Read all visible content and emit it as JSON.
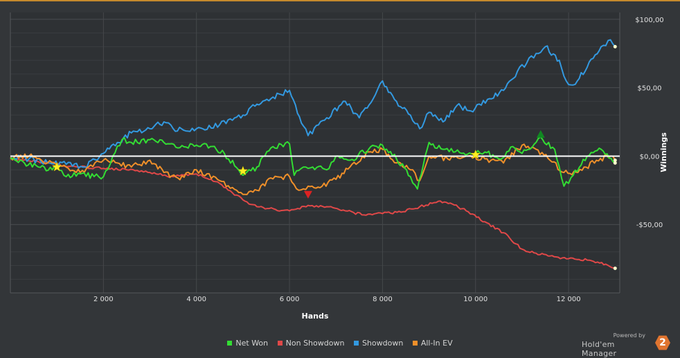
{
  "chart_data": {
    "type": "line",
    "xlabel": "Hands",
    "ylabel": "Winnings",
    "xlim": [
      0,
      13100
    ],
    "ylim": [
      -100,
      105
    ],
    "x_ticks": [
      2000,
      4000,
      6000,
      8000,
      10000,
      12000
    ],
    "x_tick_labels": [
      "2 000",
      "4 000",
      "6 000",
      "8 000",
      "10 000",
      "12 000"
    ],
    "y_ticks": [
      100,
      50,
      0,
      -50
    ],
    "y_tick_labels": [
      "$100,00",
      "$50,00",
      "$0,00",
      "-$50,00"
    ],
    "grid": true,
    "legend_position": "bottom",
    "series": [
      {
        "name": "Net Won",
        "color": "#33dd33",
        "x": [
          0,
          300,
          600,
          900,
          1000,
          1200,
          1500,
          1800,
          2000,
          2200,
          2400,
          2600,
          3000,
          3300,
          3600,
          4000,
          4300,
          4600,
          5000,
          5300,
          5600,
          6000,
          6100,
          6300,
          6500,
          6800,
          7000,
          7300,
          7700,
          8000,
          8300,
          8600,
          8750,
          9000,
          9300,
          9700,
          10000,
          10200,
          10500,
          10800,
          11000,
          11300,
          11400,
          11700,
          11900,
          12100,
          12400,
          12700,
          13000
        ],
        "y": [
          -2,
          -5,
          -8,
          -10,
          -8,
          -15,
          -13,
          -15,
          -15,
          0,
          12,
          10,
          12,
          10,
          6,
          8,
          7,
          2,
          -14,
          -8,
          6,
          9,
          -14,
          -8,
          -8,
          -10,
          0,
          -3,
          5,
          8,
          -2,
          -15,
          -24,
          10,
          5,
          2,
          2,
          3,
          -2,
          7,
          2,
          10,
          14,
          5,
          -22,
          -14,
          0,
          5,
          -5
        ]
      },
      {
        "name": "Non Showdown",
        "color": "#e04848",
        "x": [
          0,
          600,
          1000,
          1500,
          2000,
          2500,
          3000,
          3500,
          4000,
          4500,
          5000,
          5300,
          5700,
          6000,
          6400,
          6800,
          7200,
          7600,
          8000,
          8400,
          8800,
          9200,
          9500,
          9800,
          10200,
          10600,
          11000,
          11300,
          11600,
          12000,
          12400,
          12800,
          13000
        ],
        "y": [
          -2,
          -4,
          -6,
          -8,
          -9,
          -10,
          -12,
          -15,
          -13,
          -20,
          -32,
          -37,
          -39,
          -40,
          -36,
          -37,
          -40,
          -43,
          -42,
          -41,
          -37,
          -33,
          -35,
          -40,
          -48,
          -56,
          -68,
          -71,
          -73,
          -75,
          -76,
          -79,
          -82
        ]
      },
      {
        "name": "Showdown",
        "color": "#3399e0",
        "x": [
          0,
          400,
          800,
          1200,
          1600,
          2000,
          2300,
          2600,
          3000,
          3300,
          3500,
          4000,
          4500,
          5000,
          5300,
          5600,
          6000,
          6300,
          6400,
          6800,
          7200,
          7500,
          7800,
          8000,
          8300,
          8600,
          8800,
          9000,
          9300,
          9600,
          9900,
          10300,
          10600,
          10900,
          11100,
          11300,
          11500,
          11800,
          11950,
          12100,
          12400,
          12700,
          12900,
          13000
        ],
        "y": [
          -1,
          -2,
          -5,
          -6,
          -8,
          2,
          10,
          17,
          20,
          25,
          20,
          20,
          23,
          30,
          38,
          42,
          48,
          22,
          15,
          28,
          40,
          28,
          42,
          55,
          40,
          30,
          20,
          32,
          25,
          37,
          33,
          42,
          48,
          62,
          68,
          75,
          80,
          70,
          55,
          52,
          65,
          80,
          85,
          80
        ]
      },
      {
        "name": "All-In EV",
        "color": "#f0902a",
        "x": [
          0,
          400,
          800,
          1200,
          1500,
          2000,
          2300,
          2600,
          3000,
          3300,
          3600,
          4000,
          4500,
          5000,
          5300,
          5600,
          6000,
          6200,
          6400,
          6700,
          7000,
          7300,
          7700,
          8000,
          8300,
          8600,
          8800,
          9000,
          9400,
          9800,
          10200,
          10600,
          11000,
          11300,
          11600,
          11900,
          12200,
          12600,
          12900,
          13000
        ],
        "y": [
          -1,
          0,
          -5,
          -8,
          -12,
          -3,
          -5,
          -8,
          -3,
          -12,
          -16,
          -10,
          -18,
          -28,
          -25,
          -16,
          -15,
          -25,
          -22,
          -22,
          -17,
          -8,
          3,
          5,
          -5,
          -10,
          -18,
          0,
          -2,
          0,
          -2,
          -5,
          8,
          5,
          -3,
          -12,
          -12,
          -3,
          0,
          -3
        ]
      }
    ],
    "markers": [
      {
        "shape": "star",
        "color": "#ffee22",
        "x": 1000,
        "y": -8
      },
      {
        "shape": "star",
        "color": "#ffee22",
        "x": 5000,
        "y": -11
      },
      {
        "shape": "star",
        "color": "#ffee22",
        "x": 10000,
        "y": 1
      },
      {
        "shape": "triangle-down",
        "color": "#dd2222",
        "x": 6400,
        "y": -28
      },
      {
        "shape": "triangle-up",
        "color": "#118822",
        "x": 11400,
        "y": 16
      }
    ]
  },
  "legend": [
    {
      "label": "Net Won",
      "color": "#33dd33"
    },
    {
      "label": "Non Showdown",
      "color": "#e04848"
    },
    {
      "label": "Showdown",
      "color": "#3399e0"
    },
    {
      "label": "All-In EV",
      "color": "#f0902a"
    }
  ],
  "branding": {
    "powered_by": "Powered by",
    "product": "Hold'em Manager",
    "logo_text": "2"
  }
}
